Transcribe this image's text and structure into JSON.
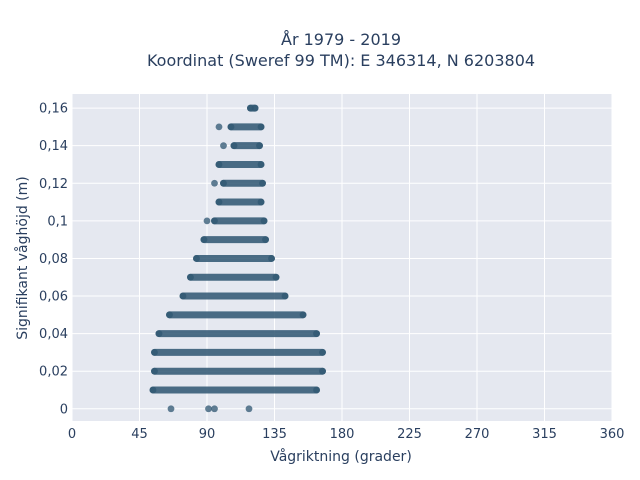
{
  "chart_data": {
    "type": "scatter",
    "title": "År 1979 - 2019",
    "subtitle": "Koordinat (Sweref 99 TM): E 346314, N 6203804",
    "xlabel": "Vågriktning (grader)",
    "ylabel": "Signifikant våghöjd (m)",
    "xlim": [
      0,
      360
    ],
    "ylim": [
      -0.0065,
      0.1675
    ],
    "x_ticks": [
      0,
      45,
      90,
      135,
      180,
      225,
      270,
      315,
      360
    ],
    "x_tick_labels": [
      "0",
      "45",
      "90",
      "135",
      "180",
      "225",
      "270",
      "315",
      "360"
    ],
    "y_ticks": [
      0,
      0.02,
      0.04,
      0.06,
      0.08,
      0.1,
      0.12,
      0.14,
      0.16
    ],
    "y_tick_labels": [
      "0",
      "0,02",
      "0,04",
      "0,06",
      "0,08",
      "0,1",
      "0,12",
      "0,14",
      "0,16"
    ],
    "grid": true,
    "marker_color": "#2e5571",
    "plot_bg": "#e5e8f0",
    "bands": [
      {
        "y": 0.16,
        "x_min": 119,
        "x_max": 122
      },
      {
        "y": 0.15,
        "x_min": 106,
        "x_max": 126
      },
      {
        "y": 0.14,
        "x_min": 108,
        "x_max": 125
      },
      {
        "y": 0.13,
        "x_min": 98,
        "x_max": 126
      },
      {
        "y": 0.12,
        "x_min": 101,
        "x_max": 127
      },
      {
        "y": 0.11,
        "x_min": 98,
        "x_max": 126
      },
      {
        "y": 0.1,
        "x_min": 95,
        "x_max": 128
      },
      {
        "y": 0.09,
        "x_min": 88,
        "x_max": 129
      },
      {
        "y": 0.08,
        "x_min": 83,
        "x_max": 133
      },
      {
        "y": 0.07,
        "x_min": 79,
        "x_max": 136
      },
      {
        "y": 0.06,
        "x_min": 74,
        "x_max": 142
      },
      {
        "y": 0.05,
        "x_min": 65,
        "x_max": 154
      },
      {
        "y": 0.04,
        "x_min": 58,
        "x_max": 163
      },
      {
        "y": 0.03,
        "x_min": 55,
        "x_max": 167
      },
      {
        "y": 0.02,
        "x_min": 55,
        "x_max": 167
      },
      {
        "y": 0.01,
        "x_min": 54,
        "x_max": 163
      }
    ],
    "points": [
      {
        "x": 66,
        "y": 0
      },
      {
        "x": 91,
        "y": 0
      },
      {
        "x": 95,
        "y": 0
      },
      {
        "x": 118,
        "y": 0
      },
      {
        "x": 98,
        "y": 0.15
      },
      {
        "x": 101,
        "y": 0.14
      },
      {
        "x": 95,
        "y": 0.12
      },
      {
        "x": 90,
        "y": 0.1
      }
    ]
  }
}
